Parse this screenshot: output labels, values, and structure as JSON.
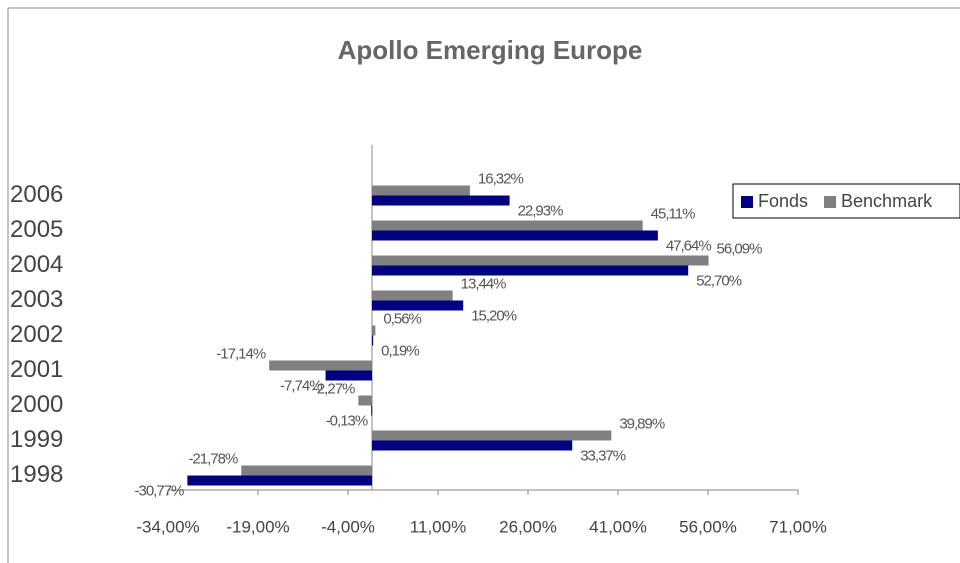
{
  "chart_data": {
    "type": "hbar",
    "title": "Apollo Emerging Europe",
    "categories": [
      "2006",
      "2005",
      "2004",
      "2003",
      "2002",
      "2001",
      "2000",
      "1999",
      "1998"
    ],
    "series": [
      {
        "name": "Fonds",
        "color": "#000080",
        "values": [
          22.93,
          47.64,
          52.7,
          15.2,
          0.19,
          -7.74,
          -0.13,
          33.37,
          -30.77
        ],
        "value_labels": [
          "22,93%",
          "47,64%",
          "52,70%",
          "15,20%",
          "0,19%",
          "-7,74%",
          "-0,13%",
          "33,37%",
          "-30,77%"
        ]
      },
      {
        "name": "Benchmark",
        "color": "#808080",
        "values": [
          16.32,
          45.11,
          56.09,
          13.44,
          0.56,
          -17.14,
          -2.27,
          39.89,
          -21.78
        ],
        "value_labels": [
          "16,32%",
          "45,11%",
          "56,09%",
          "13,44%",
          "0,56%",
          "-17,14%",
          "-2,27%",
          "39,89%",
          "-21,78%"
        ]
      }
    ],
    "xlim": [
      -34,
      71
    ],
    "xticks": [
      {
        "value": -34,
        "label": "-34,00%"
      },
      {
        "value": -19,
        "label": "-19,00%"
      },
      {
        "value": -4,
        "label": "-4,00%"
      },
      {
        "value": 11,
        "label": "11,00%"
      },
      {
        "value": 26,
        "label": "26,00%"
      },
      {
        "value": 41,
        "label": "41,00%"
      },
      {
        "value": 56,
        "label": "56,00%"
      },
      {
        "value": 71,
        "label": "71,00%"
      }
    ],
    "legend": "right"
  }
}
